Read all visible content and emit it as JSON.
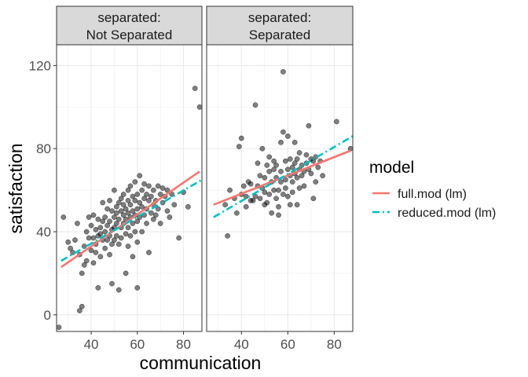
{
  "chart_data": {
    "type": "scatter",
    "xlabel": "communication",
    "ylabel": "satisfaction",
    "xlim": [
      25,
      88
    ],
    "ylim": [
      -8,
      130
    ],
    "x_ticks": [
      40,
      60,
      80
    ],
    "y_ticks": [
      0,
      40,
      80,
      120
    ],
    "x_tick_labels": [
      "40",
      "60",
      "80"
    ],
    "y_tick_labels": [
      "0",
      "40",
      "80",
      "120"
    ],
    "grid": true,
    "legend": {
      "title": "model",
      "position": "right",
      "entries": [
        {
          "label": "full.mod (lm)",
          "color": "#F8766D",
          "linetype": "solid"
        },
        {
          "label": "reduced.mod (lm)",
          "color": "#00BFC4",
          "linetype": "dotdash"
        }
      ]
    },
    "panels": [
      {
        "strip_line1": "separated:",
        "strip_line2": "Not Separated",
        "full_line": {
          "x": [
            27,
            87
          ],
          "y": [
            23,
            69
          ]
        },
        "reduced_line": {
          "x": [
            27,
            88
          ],
          "y": [
            26,
            65
          ]
        },
        "points": [
          [
            26,
            -6
          ],
          [
            28,
            47
          ],
          [
            30,
            35
          ],
          [
            31,
            32
          ],
          [
            32,
            30
          ],
          [
            33,
            36
          ],
          [
            34,
            44
          ],
          [
            35,
            29
          ],
          [
            35,
            2
          ],
          [
            36,
            4
          ],
          [
            36,
            20
          ],
          [
            37,
            24
          ],
          [
            37,
            33
          ],
          [
            38,
            26
          ],
          [
            38,
            40
          ],
          [
            39,
            37
          ],
          [
            39,
            47
          ],
          [
            40,
            31
          ],
          [
            40,
            43
          ],
          [
            41,
            37
          ],
          [
            41,
            48
          ],
          [
            41,
            25
          ],
          [
            42,
            41
          ],
          [
            42,
            30
          ],
          [
            42,
            34
          ],
          [
            43,
            38
          ],
          [
            43,
            46
          ],
          [
            43,
            13
          ],
          [
            44,
            39
          ],
          [
            44,
            42
          ],
          [
            44,
            28
          ],
          [
            45,
            45
          ],
          [
            45,
            36
          ],
          [
            45,
            54
          ],
          [
            46,
            40
          ],
          [
            46,
            32
          ],
          [
            46,
            47
          ],
          [
            47,
            51
          ],
          [
            47,
            36
          ],
          [
            47,
            43
          ],
          [
            48,
            45
          ],
          [
            48,
            29
          ],
          [
            48,
            55
          ],
          [
            48,
            38
          ],
          [
            49,
            41
          ],
          [
            49,
            50
          ],
          [
            49,
            34
          ],
          [
            49,
            15
          ],
          [
            50,
            47
          ],
          [
            50,
            42
          ],
          [
            50,
            60
          ],
          [
            50,
            36
          ],
          [
            51,
            52
          ],
          [
            51,
            44
          ],
          [
            51,
            38
          ],
          [
            51,
            49
          ],
          [
            52,
            54
          ],
          [
            52,
            46
          ],
          [
            52,
            34
          ],
          [
            52,
            12
          ],
          [
            53,
            56
          ],
          [
            53,
            50
          ],
          [
            53,
            42
          ],
          [
            53,
            37
          ],
          [
            54,
            48
          ],
          [
            54,
            58
          ],
          [
            54,
            44
          ],
          [
            54,
            53
          ],
          [
            55,
            51
          ],
          [
            55,
            46
          ],
          [
            55,
            39
          ],
          [
            55,
            20
          ],
          [
            56,
            55
          ],
          [
            56,
            49
          ],
          [
            56,
            60
          ],
          [
            56,
            42
          ],
          [
            56,
            33
          ],
          [
            57,
            53
          ],
          [
            57,
            47
          ],
          [
            57,
            62
          ],
          [
            57,
            38
          ],
          [
            58,
            57
          ],
          [
            58,
            50
          ],
          [
            58,
            44
          ],
          [
            58,
            28
          ],
          [
            59,
            55
          ],
          [
            59,
            48
          ],
          [
            59,
            64
          ],
          [
            59,
            40
          ],
          [
            60,
            58
          ],
          [
            60,
            51
          ],
          [
            60,
            45
          ],
          [
            60,
            13
          ],
          [
            60,
            35
          ],
          [
            61,
            67
          ],
          [
            61,
            54
          ],
          [
            61,
            47
          ],
          [
            62,
            60
          ],
          [
            62,
            52
          ],
          [
            62,
            40
          ],
          [
            63,
            63
          ],
          [
            63,
            56
          ],
          [
            63,
            48
          ],
          [
            64,
            58
          ],
          [
            64,
            51
          ],
          [
            64,
            44
          ],
          [
            65,
            62
          ],
          [
            65,
            55
          ],
          [
            65,
            30
          ],
          [
            66,
            57
          ],
          [
            66,
            49
          ],
          [
            67,
            60
          ],
          [
            67,
            53
          ],
          [
            67,
            46
          ],
          [
            68,
            55
          ],
          [
            68,
            48
          ],
          [
            69,
            62
          ],
          [
            69,
            51
          ],
          [
            70,
            58
          ],
          [
            70,
            44
          ],
          [
            71,
            61
          ],
          [
            71,
            54
          ],
          [
            72,
            57
          ],
          [
            73,
            60
          ],
          [
            73,
            50
          ],
          [
            74,
            47
          ],
          [
            75,
            58
          ],
          [
            76,
            53
          ],
          [
            78,
            37
          ],
          [
            80,
            59
          ],
          [
            82,
            52
          ],
          [
            85,
            109
          ],
          [
            87,
            100
          ]
        ]
      },
      {
        "strip_line1": "separated:",
        "strip_line2": "Separated",
        "full_line": {
          "x": [
            28,
            87
          ],
          "y": [
            53,
            79
          ]
        },
        "reduced_line": {
          "x": [
            28,
            88
          ],
          "y": [
            47,
            86
          ]
        },
        "points": [
          [
            33,
            53
          ],
          [
            34,
            38
          ],
          [
            35,
            60
          ],
          [
            37,
            56
          ],
          [
            38,
            49
          ],
          [
            39,
            81
          ],
          [
            40,
            85
          ],
          [
            40,
            58
          ],
          [
            41,
            62
          ],
          [
            42,
            57
          ],
          [
            42,
            52
          ],
          [
            43,
            64
          ],
          [
            44,
            55
          ],
          [
            44,
            63
          ],
          [
            45,
            55
          ],
          [
            46,
            57
          ],
          [
            46,
            101
          ],
          [
            47,
            62
          ],
          [
            47,
            73
          ],
          [
            48,
            67
          ],
          [
            48,
            56
          ],
          [
            49,
            80
          ],
          [
            49,
            61
          ],
          [
            50,
            59
          ],
          [
            50,
            66
          ],
          [
            50,
            53
          ],
          [
            51,
            72
          ],
          [
            51,
            54
          ],
          [
            52,
            58
          ],
          [
            52,
            76
          ],
          [
            52,
            69
          ],
          [
            53,
            64
          ],
          [
            53,
            49
          ],
          [
            54,
            60
          ],
          [
            54,
            70
          ],
          [
            54,
            74
          ],
          [
            55,
            56
          ],
          [
            55,
            66
          ],
          [
            55,
            72
          ],
          [
            56,
            60
          ],
          [
            56,
            52
          ],
          [
            56,
            48
          ],
          [
            57,
            69
          ],
          [
            57,
            64
          ],
          [
            57,
            83
          ],
          [
            58,
            58
          ],
          [
            58,
            117
          ],
          [
            58,
            88
          ],
          [
            59,
            74
          ],
          [
            59,
            61
          ],
          [
            59,
            65
          ],
          [
            60,
            86
          ],
          [
            60,
            70
          ],
          [
            60,
            57
          ],
          [
            61,
            67
          ],
          [
            61,
            75
          ],
          [
            61,
            53
          ],
          [
            62,
            71
          ],
          [
            62,
            64
          ],
          [
            62,
            59
          ],
          [
            63,
            83
          ],
          [
            63,
            68
          ],
          [
            63,
            73
          ],
          [
            64,
            66
          ],
          [
            64,
            75
          ],
          [
            64,
            53
          ],
          [
            65,
            70
          ],
          [
            65,
            78
          ],
          [
            65,
            61
          ],
          [
            66,
            72
          ],
          [
            66,
            67
          ],
          [
            67,
            69
          ],
          [
            67,
            62
          ],
          [
            68,
            73
          ],
          [
            68,
            77
          ],
          [
            69,
            91
          ],
          [
            69,
            70
          ],
          [
            70,
            68
          ],
          [
            70,
            75
          ],
          [
            71,
            74
          ],
          [
            71,
            56
          ],
          [
            72,
            76
          ],
          [
            72,
            64
          ],
          [
            73,
            71
          ],
          [
            74,
            74
          ],
          [
            75,
            67
          ],
          [
            81,
            93
          ],
          [
            87,
            80
          ]
        ]
      }
    ]
  }
}
